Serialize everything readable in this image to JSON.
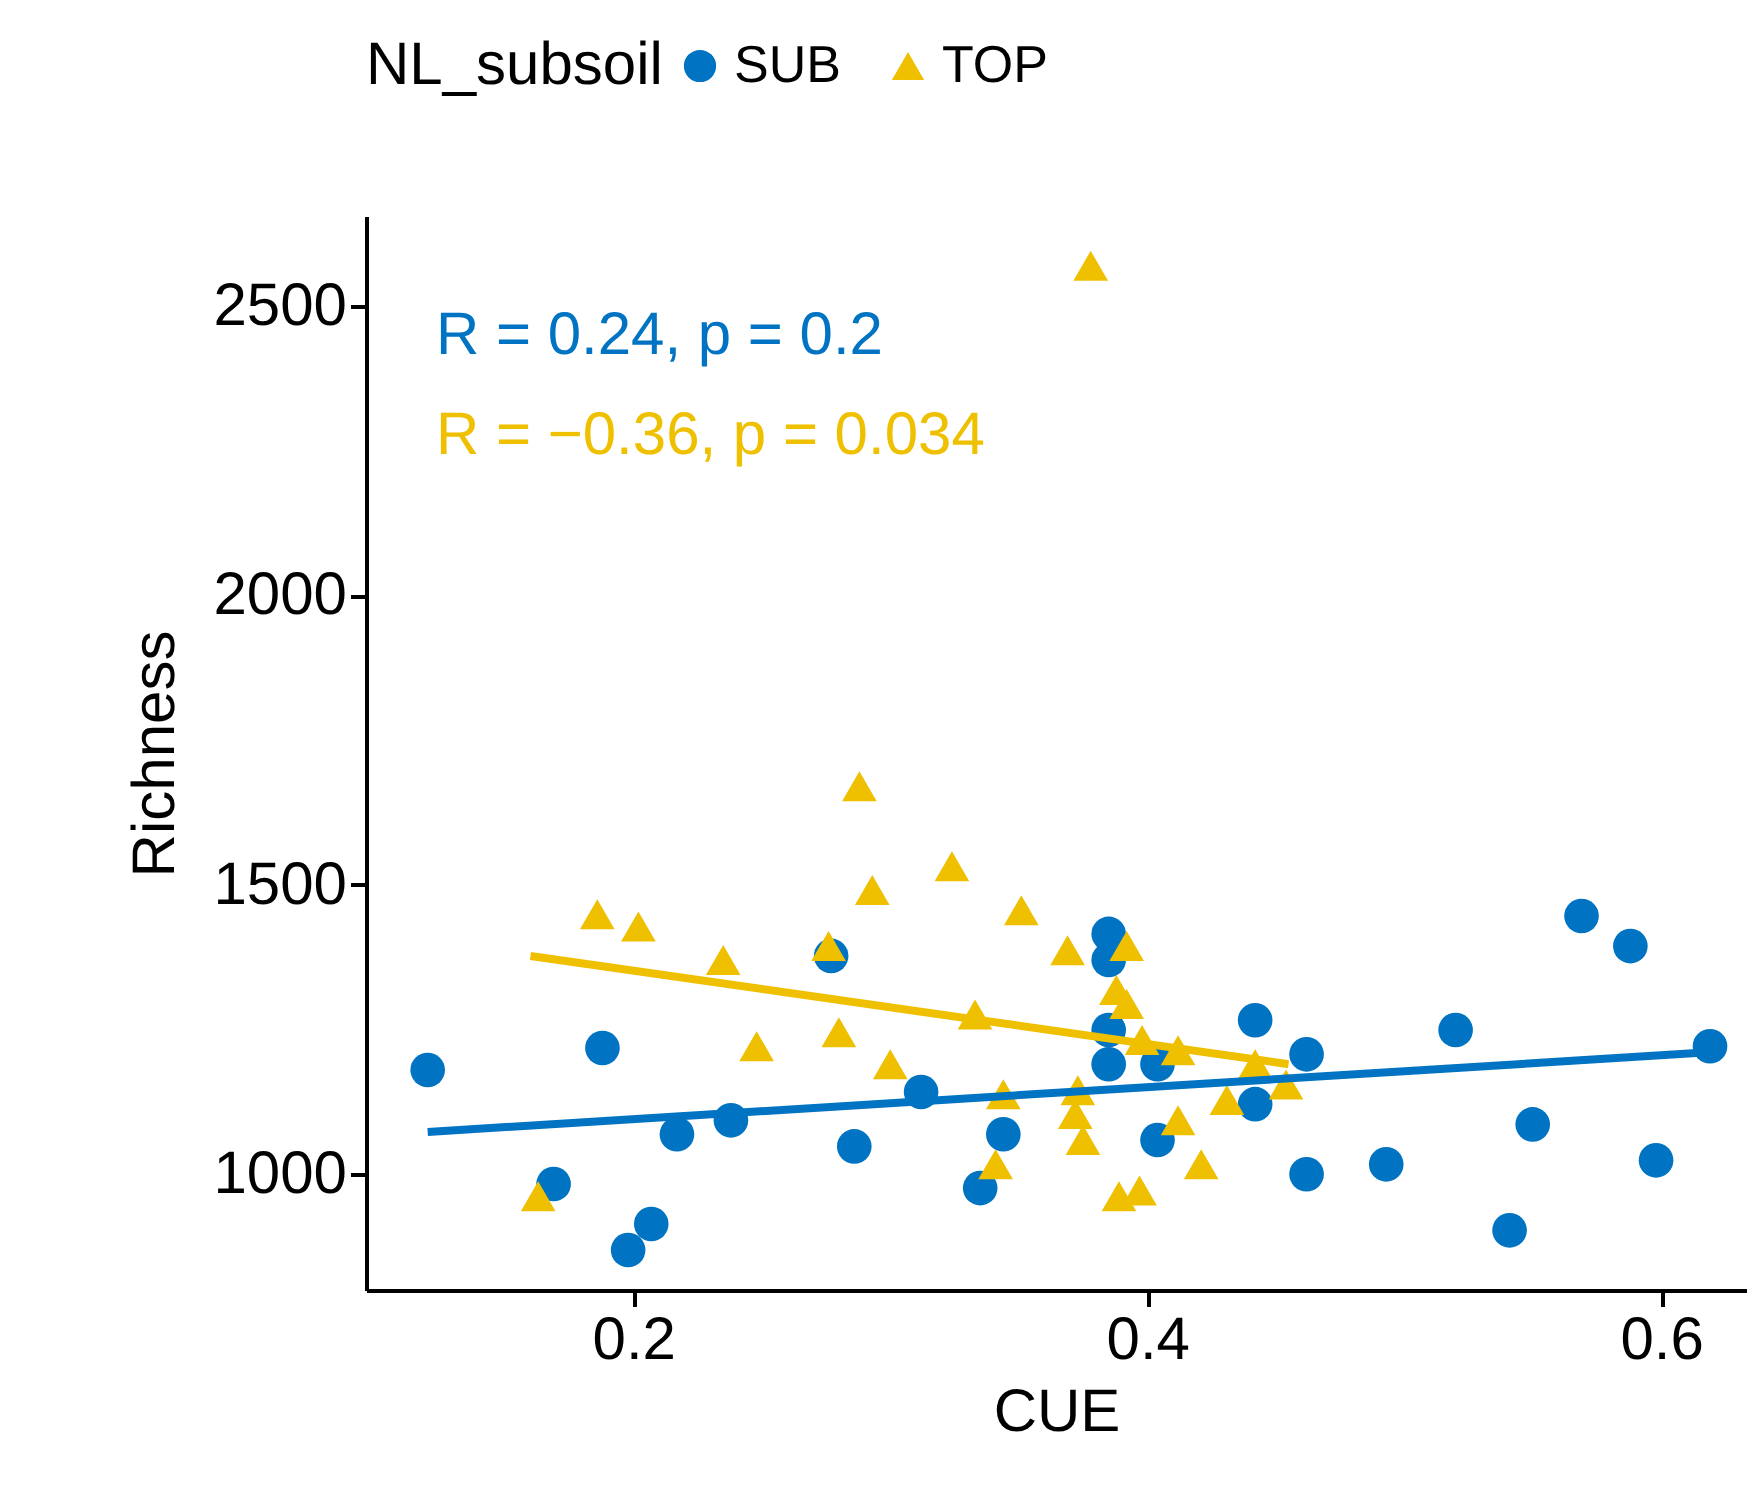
{
  "chart_data": {
    "type": "scatter",
    "xlabel": "CUE",
    "ylabel": "Richness",
    "legend_title": "NL_subsoil",
    "legend": "top",
    "xlim": [
      0.096,
      0.633
    ],
    "xticks": [
      0.2,
      0.4,
      0.6
    ],
    "ylim": [
      800,
      2655
    ],
    "yticks": [
      1000,
      1500,
      2000,
      2500
    ],
    "grid": false,
    "annotations": [
      "R = 0.24, p = 0.2",
      "R = −0.36, p = 0.034"
    ],
    "series": [
      {
        "name": "SUB",
        "color": "#0073c2",
        "marker": "circle",
        "x": [
          0.12,
          0.169,
          0.188,
          0.198,
          0.207,
          0.217,
          0.238,
          0.286,
          0.277,
          0.312,
          0.335,
          0.344,
          0.385,
          0.385,
          0.385,
          0.385,
          0.404,
          0.404,
          0.442,
          0.442,
          0.462,
          0.462,
          0.493,
          0.52,
          0.55,
          0.541,
          0.569,
          0.588,
          0.598,
          0.619
        ],
        "values": [
          1180,
          983,
          1218,
          869,
          914,
          1069,
          1093,
          1048,
          1377,
          1142,
          976,
          1069,
          1415,
          1370,
          1249,
          1190,
          1190,
          1059,
          1266,
          1121,
          1207,
          1000,
          1017,
          1249,
          1086,
          903,
          1446,
          1394,
          1024,
          1221
        ]
      },
      {
        "name": "TOP",
        "color": "#efc000",
        "marker": "triangle",
        "x": [
          0.163,
          0.186,
          0.202,
          0.235,
          0.248,
          0.276,
          0.28,
          0.288,
          0.293,
          0.3,
          0.324,
          0.351,
          0.333,
          0.344,
          0.341,
          0.369,
          0.373,
          0.372,
          0.375,
          0.378,
          0.392,
          0.388,
          0.392,
          0.398,
          0.412,
          0.412,
          0.389,
          0.397,
          0.421,
          0.431,
          0.442,
          0.454
        ],
        "values": [
          962,
          1449,
          1428,
          1370,
          1221,
          1394,
          1245,
          1670,
          1491,
          1190,
          1532,
          1456,
          1276,
          1138,
          1017,
          1387,
          1145,
          1104,
          1059,
          2569,
          1394,
          1318,
          1294,
          1232,
          1214,
          1093,
          962,
          972,
          1017,
          1128,
          1190,
          1155
        ]
      },
      {
        "type": "line",
        "color": "#0073c2",
        "marker": "none",
        "x": [
          0.12,
          0.62
        ],
        "values": [
          1073,
          1211
        ]
      },
      {
        "type": "line",
        "color": "#efc000",
        "marker": "none",
        "x": [
          0.16,
          0.455
        ],
        "values": [
          1377,
          1190
        ]
      }
    ]
  }
}
